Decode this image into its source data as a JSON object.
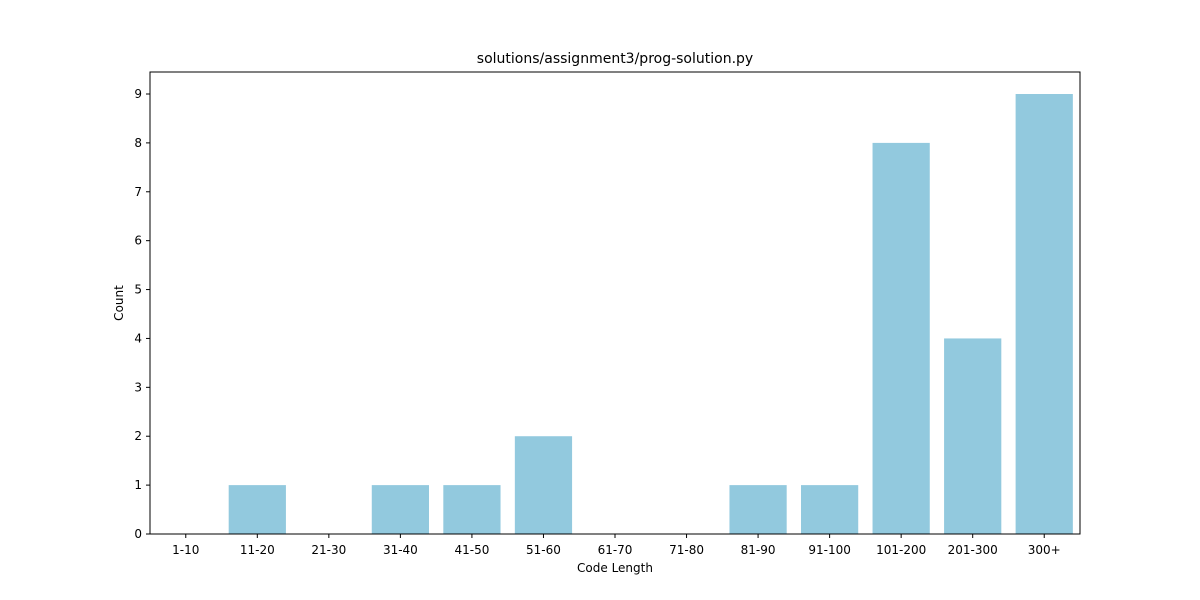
{
  "chart_data": {
    "type": "bar",
    "title": "solutions/assignment3/prog-solution.py",
    "xlabel": "Code Length",
    "ylabel": "Count",
    "categories": [
      "1-10",
      "11-20",
      "21-30",
      "31-40",
      "41-50",
      "51-60",
      "61-70",
      "71-80",
      "81-90",
      "91-100",
      "101-200",
      "201-300",
      "300+"
    ],
    "values": [
      0,
      1,
      0,
      1,
      1,
      2,
      0,
      0,
      1,
      1,
      8,
      4,
      9
    ],
    "ylim": [
      0,
      9.45
    ],
    "yticks": [
      0,
      1,
      2,
      3,
      4,
      5,
      6,
      7,
      8,
      9
    ],
    "bar_color": "#92c9de",
    "grid": false,
    "legend": "none"
  }
}
